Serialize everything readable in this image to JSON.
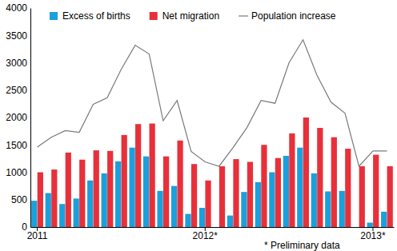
{
  "chart_data": {
    "type": "bar",
    "categories": [
      "2011",
      null,
      null,
      null,
      null,
      null,
      null,
      null,
      null,
      null,
      null,
      null,
      "2012*",
      null,
      null,
      null,
      null,
      null,
      null,
      null,
      null,
      null,
      null,
      null,
      "2013*",
      null
    ],
    "series": [
      {
        "name": "Excess of births",
        "type": "bar",
        "color": "#1aa0dc",
        "values": [
          480,
          620,
          420,
          520,
          850,
          980,
          1200,
          1450,
          1290,
          660,
          750,
          240,
          350,
          0,
          210,
          640,
          820,
          1000,
          1300,
          1450,
          980,
          650,
          660,
          0,
          80,
          280
        ]
      },
      {
        "name": "Net migration",
        "type": "bar",
        "color": "#e8303a",
        "values": [
          1000,
          1050,
          1360,
          1230,
          1400,
          1390,
          1680,
          1880,
          1890,
          1290,
          1580,
          1150,
          850,
          1110,
          1240,
          1190,
          1500,
          1260,
          1710,
          2000,
          1810,
          1640,
          1430,
          1110,
          1320,
          1110
        ]
      },
      {
        "name": "Population increase",
        "type": "line",
        "color": "#7a7a7a",
        "values": [
          1460,
          1640,
          1760,
          1730,
          2240,
          2360,
          2880,
          3320,
          3160,
          1940,
          2310,
          1380,
          1190,
          1110,
          1450,
          1820,
          2310,
          2260,
          3000,
          3420,
          2770,
          2280,
          2080,
          1110,
          1390,
          1390
        ]
      }
    ],
    "annotations": [
      "* Preliminary data"
    ],
    "ylim": [
      0,
      4000
    ],
    "yticks": [
      0,
      500,
      1000,
      1500,
      2000,
      2500,
      3000,
      3500,
      4000
    ],
    "grid": false,
    "legend": "top"
  }
}
